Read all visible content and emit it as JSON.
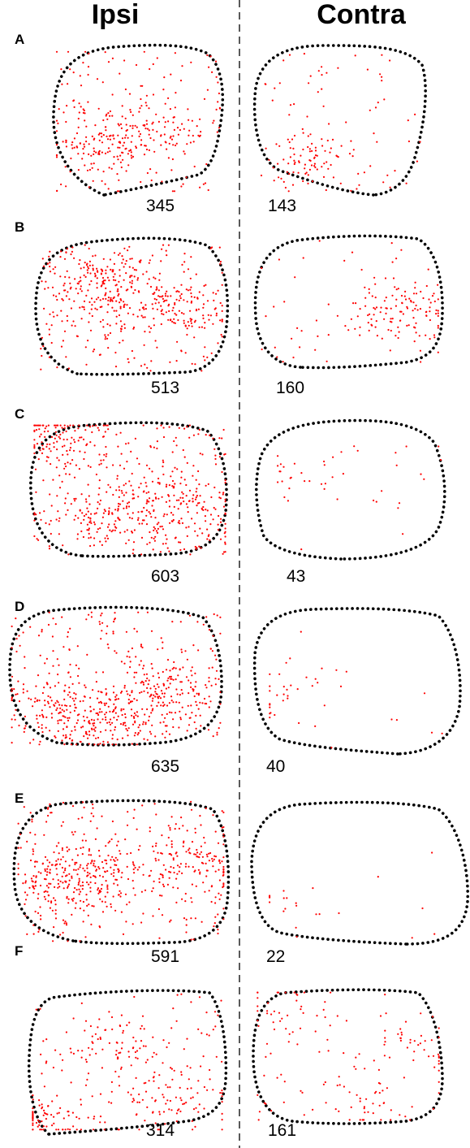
{
  "figure": {
    "columns": [
      "Ipsi",
      "Contra"
    ],
    "colors": {
      "cell_marker": "#ff0000",
      "outline": "#000000",
      "background": "#ffffff"
    },
    "panels": [
      {
        "letter": "A",
        "ipsi_count": "345",
        "contra_count": "143"
      },
      {
        "letter": "B",
        "ipsi_count": "513",
        "contra_count": "160"
      },
      {
        "letter": "C",
        "ipsi_count": "603",
        "contra_count": "43"
      },
      {
        "letter": "D",
        "ipsi_count": "635",
        "contra_count": "40"
      },
      {
        "letter": "E",
        "ipsi_count": "591",
        "contra_count": "22"
      },
      {
        "letter": "F",
        "ipsi_count": "314",
        "contra_count": "161"
      }
    ]
  }
}
